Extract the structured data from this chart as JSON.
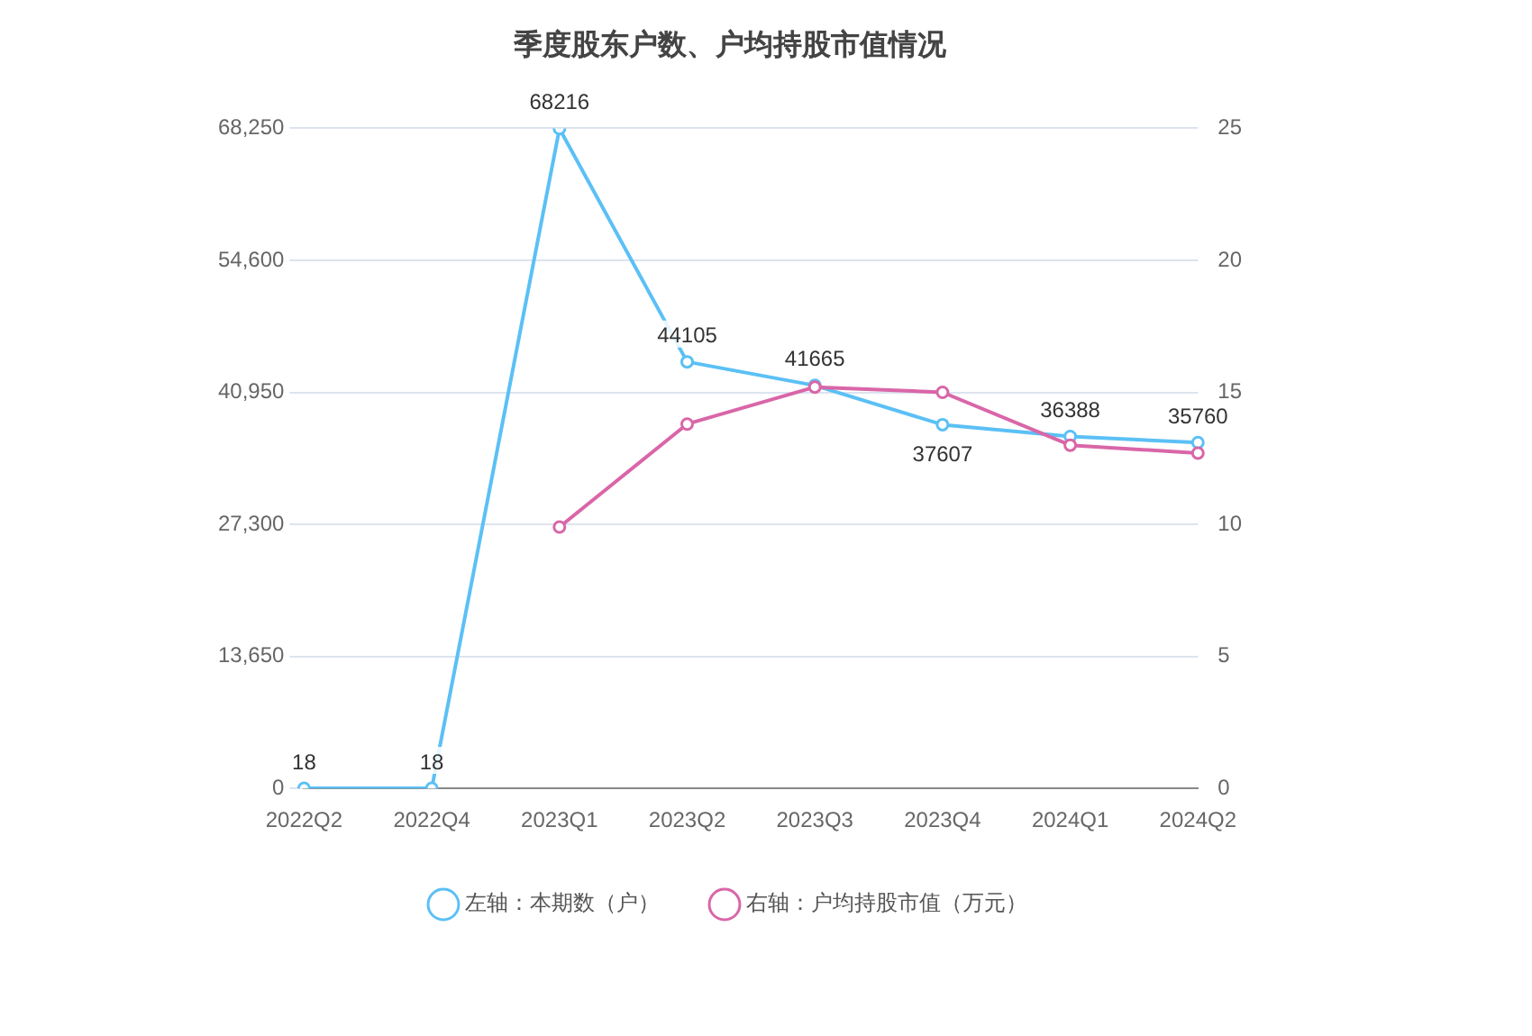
{
  "chart_data": {
    "type": "line",
    "title": "季度股东户数、户均持股市值情况",
    "categories": [
      "2022Q2",
      "2022Q4",
      "2023Q1",
      "2023Q2",
      "2023Q3",
      "2023Q4",
      "2024Q1",
      "2024Q2"
    ],
    "series": [
      {
        "name": "左轴：本期数（户）",
        "color": "#5bc0f5",
        "values": [
          18,
          18,
          68216,
          44105,
          41665,
          37607,
          36388,
          35760
        ],
        "value_labels": [
          "18",
          "18",
          "68216",
          "44105",
          "41665",
          "37607",
          "36388",
          "35760"
        ]
      },
      {
        "name": "右轴：户均持股市值（万元）",
        "color": "#d966a8",
        "axis": "y2",
        "values": [
          null,
          null,
          9.9,
          13.8,
          15.2,
          15.0,
          13.0,
          12.7
        ]
      }
    ],
    "ylim": [
      0,
      68250
    ],
    "yticks": [
      0,
      {
        "value": 13650,
        "label": "13,650"
      },
      {
        "value": 27300,
        "label": "27,300"
      },
      {
        "value": 40950,
        "label": "40,950"
      },
      {
        "value": 54600,
        "label": "54,600"
      },
      {
        "value": 68250,
        "label": "68,250"
      }
    ],
    "y2lim": [
      0,
      25
    ],
    "y2ticks": [
      0,
      5,
      10,
      15,
      20,
      25
    ],
    "grid": "y",
    "legend": "bottom",
    "marker": "circle",
    "line_style": "solid"
  }
}
